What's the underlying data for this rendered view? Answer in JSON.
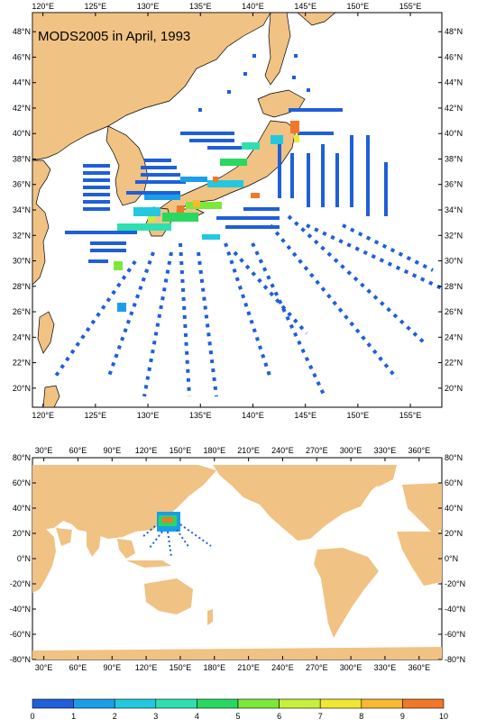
{
  "map_title": "MODS2005 in April, 1993",
  "colors": {
    "land": "#f0c283",
    "ocean": "#ffffff",
    "border": "#000000"
  },
  "top_map": {
    "lon_ticks": [
      "120°E",
      "125°E",
      "130°E",
      "135°E",
      "140°E",
      "145°E",
      "150°E",
      "155°E"
    ],
    "lat_ticks": [
      "48°N",
      "46°N",
      "44°N",
      "42°N",
      "40°N",
      "38°N",
      "36°N",
      "34°N",
      "32°N",
      "30°N",
      "28°N",
      "26°N",
      "24°N",
      "22°N",
      "20°N"
    ],
    "extent": {
      "lon": [
        119,
        158
      ],
      "lat": [
        18.5,
        49.5
      ]
    }
  },
  "bottom_map": {
    "lon_ticks": [
      "30°E",
      "60°E",
      "90°E",
      "120°E",
      "150°E",
      "180°E",
      "210°E",
      "240°E",
      "270°E",
      "300°E",
      "330°E",
      "360°E"
    ],
    "lat_ticks": [
      "80°N",
      "60°N",
      "40°N",
      "20°N",
      "0°N",
      "-20°N",
      "-40°N",
      "-60°N",
      "-80°N"
    ],
    "extent": {
      "lon": [
        20,
        380
      ],
      "lat": [
        -80,
        80
      ]
    }
  },
  "colorbar": {
    "labels": [
      "0",
      "1",
      "2",
      "3",
      "4",
      "5",
      "6",
      "7",
      "8",
      "9",
      "10"
    ],
    "colors": [
      "#1f5fd8",
      "#1b9ee8",
      "#22c8e0",
      "#2ee0b0",
      "#28d860",
      "#7ce83a",
      "#c8f03a",
      "#f0e830",
      "#f8b830",
      "#f07828"
    ]
  }
}
